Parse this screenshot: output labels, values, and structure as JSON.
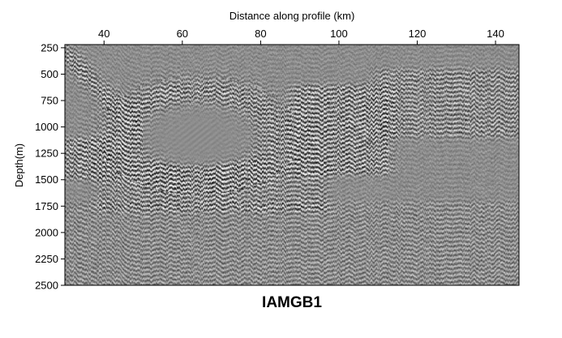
{
  "chart_data": {
    "type": "heatmap",
    "title": "IAMGB1",
    "xlabel": "Distance along profile (km)",
    "ylabel": "Depth(m)",
    "xlim": [
      30,
      146
    ],
    "ylim": [
      2500,
      220
    ],
    "x_ticks": [
      40,
      60,
      80,
      100,
      120,
      140
    ],
    "y_ticks": [
      250,
      500,
      750,
      1000,
      1250,
      1500,
      1750,
      2000,
      2250,
      2500
    ],
    "x_axis_position": "top",
    "y_axis_inverted": true,
    "colormap": "grayscale",
    "color_min": "#000000",
    "color_max": "#ffffff",
    "color_mid": "#8c8c8c",
    "grid": false,
    "features": [
      {
        "kind": "dipping-reflector-band",
        "x_start": 30,
        "x_end": 48,
        "depth_start": 300,
        "depth_end": 1000,
        "strength": 0.75
      },
      {
        "kind": "quiet-dome-interior",
        "x_center": 64,
        "depth_center": 1080,
        "x_halfwidth": 16,
        "depth_halfwidth": 330,
        "strength": 0.2
      },
      {
        "kind": "dome-rim-reflections",
        "x_center": 64,
        "depth_center": 1080,
        "x_halfwidth": 20,
        "depth_halfwidth": 430,
        "strength": 0.85
      },
      {
        "kind": "strong-flat-reflectors",
        "x_start": 30,
        "x_end": 42,
        "depth_start": 1150,
        "depth_end": 1450,
        "strength": 0.95
      },
      {
        "kind": "strong-flat-reflectors",
        "x_start": 90,
        "x_end": 111,
        "depth_start": 650,
        "depth_end": 1400,
        "strength": 1.0
      },
      {
        "kind": "moderate-reflectors",
        "x_start": 111,
        "x_end": 146,
        "depth_start": 500,
        "depth_end": 1050,
        "strength": 0.7
      },
      {
        "kind": "moderate-reflectors",
        "x_start": 40,
        "x_end": 95,
        "depth_start": 1400,
        "depth_end": 1750,
        "strength": 0.65
      },
      {
        "kind": "low-energy-noise",
        "x_start": 30,
        "x_end": 146,
        "depth_start": 1750,
        "depth_end": 2500,
        "strength": 0.4
      }
    ]
  }
}
